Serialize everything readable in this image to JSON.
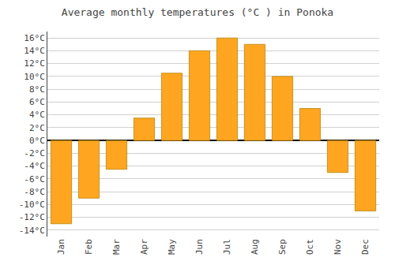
{
  "chart_data": {
    "type": "bar",
    "title": "Average monthly temperatures (°C ) in Ponoka",
    "categories": [
      "Jan",
      "Feb",
      "Mar",
      "Apr",
      "May",
      "Jun",
      "Jul",
      "Aug",
      "Sep",
      "Oct",
      "Nov",
      "Dec"
    ],
    "values": [
      -13,
      -9,
      -4.5,
      3.5,
      10.5,
      14,
      16,
      15,
      10,
      5,
      -5,
      -11
    ],
    "color": "#FFA520",
    "ylim": [
      -15,
      17
    ],
    "yticks": [
      {
        "value": -14,
        "label": "-14°C"
      },
      {
        "value": -12,
        "label": "-12°C"
      },
      {
        "value": -10,
        "label": "-10°C"
      },
      {
        "value": -8,
        "label": "-8°C"
      },
      {
        "value": -6,
        "label": "-6°C"
      },
      {
        "value": -4,
        "label": "-4°C"
      },
      {
        "value": -2,
        "label": "-2°C"
      },
      {
        "value": 0,
        "label": "0°C"
      },
      {
        "value": 2,
        "label": "2°C"
      },
      {
        "value": 4,
        "label": "4°C"
      },
      {
        "value": 6,
        "label": "6°C"
      },
      {
        "value": 8,
        "label": "8°C"
      },
      {
        "value": 10,
        "label": "10°C"
      },
      {
        "value": 12,
        "label": "12°C"
      },
      {
        "value": 14,
        "label": "14°C"
      },
      {
        "value": 16,
        "label": "16°C"
      }
    ],
    "grid": true
  }
}
